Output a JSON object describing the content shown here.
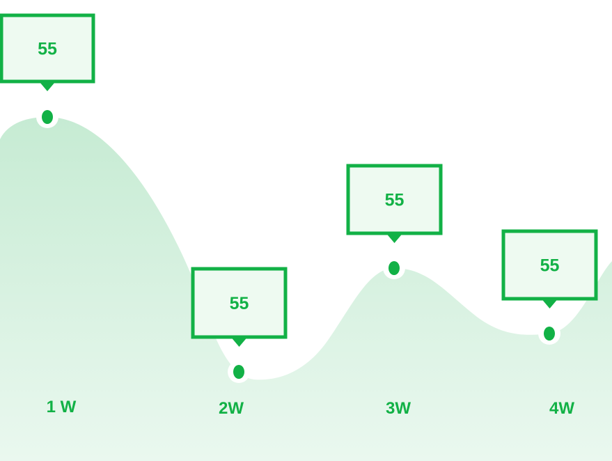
{
  "chart_data": {
    "type": "area",
    "categories": [
      "1 W",
      "2W",
      "3W",
      "4W"
    ],
    "series": [
      {
        "values": [
          55,
          55,
          55,
          55
        ],
        "data_labels": [
          "55",
          "55",
          "55",
          "55"
        ]
      }
    ],
    "title": "",
    "xlabel": "",
    "ylabel": "",
    "grid": false,
    "legend": "none"
  },
  "colors": {
    "accent": "#12b146",
    "fill_top": "#c6ebd3",
    "fill_bottom": "#eaf8ef",
    "label_box_fill": "#eefaf1",
    "label_text": "#12b146",
    "tick_text": "#12b146"
  }
}
